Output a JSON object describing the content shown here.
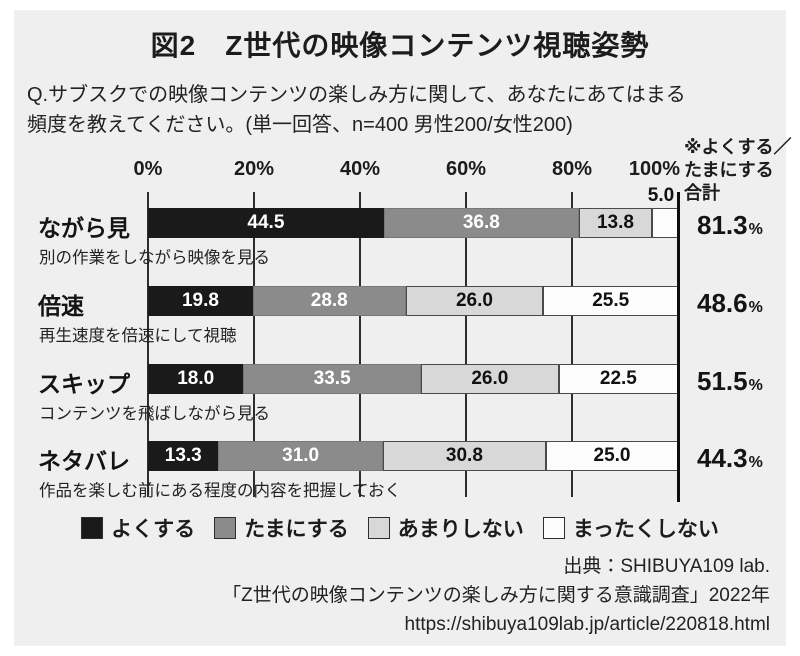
{
  "figure": {
    "title": "図2　Z世代の映像コンテンツ視聴姿勢",
    "question_line1": "Q.サブスクでの映像コンテンツの楽しみ方に関して、あなたにあてはまる",
    "question_line2": "頻度を教えてください。(単一回答、n=400 男性200/女性200)",
    "note_lines": [
      "※よくする／",
      "たまにする",
      "合計"
    ]
  },
  "chart_data": {
    "type": "bar",
    "orientation": "horizontal",
    "stacked": true,
    "title": "図2　Z世代の映像コンテンツ視聴姿勢",
    "axis": {
      "min": 0,
      "max": 100,
      "ticks": [
        "0%",
        "20%",
        "40%",
        "60%",
        "80%",
        "100%"
      ],
      "grid": true
    },
    "percent_sign": "%",
    "total_header": "※よくする／たまにする合計",
    "legend_position": "bottom",
    "legend": [
      {
        "label": "よくする",
        "color": "#1a1a1a",
        "text_color": "#ffffff"
      },
      {
        "label": "たまにする",
        "color": "#8b8b8b",
        "text_color": "#ffffff"
      },
      {
        "label": "あまりしない",
        "color": "#d8d8d8",
        "text_color": "#111111"
      },
      {
        "label": "まったくしない",
        "color": "#fcfcfc",
        "text_color": "#111111"
      }
    ],
    "rows": [
      {
        "category": "ながら見",
        "description": "別の作業をしながら映像を見る",
        "values": [
          44.5,
          36.8,
          13.8,
          5.0
        ],
        "value_labels": [
          "44.5",
          "36.8",
          "13.8",
          "5.0"
        ],
        "total": "81.3"
      },
      {
        "category": "倍速",
        "description": "再生速度を倍速にして視聴",
        "values": [
          19.8,
          28.8,
          26.0,
          25.5
        ],
        "value_labels": [
          "19.8",
          "28.8",
          "26.0",
          "25.5"
        ],
        "total": "48.6"
      },
      {
        "category": "スキップ",
        "description": "コンテンツを飛ばしながら見る",
        "values": [
          18.0,
          33.5,
          26.0,
          22.5
        ],
        "value_labels": [
          "18.0",
          "33.5",
          "26.0",
          "22.5"
        ],
        "total": "51.5"
      },
      {
        "category": "ネタバレ",
        "description": "作品を楽しむ前にある程度の内容を把握しておく",
        "values": [
          13.3,
          31.0,
          30.8,
          25.0
        ],
        "value_labels": [
          "13.3",
          "31.0",
          "30.8",
          "25.0"
        ],
        "total": "44.3"
      }
    ]
  },
  "source": {
    "lines": [
      "出典：SHIBUYA109 lab.",
      "「Z世代の映像コンテンツの楽しみ方に関する意識調査」2022年",
      "https://shibuya109lab.jp/article/220818.html"
    ]
  }
}
